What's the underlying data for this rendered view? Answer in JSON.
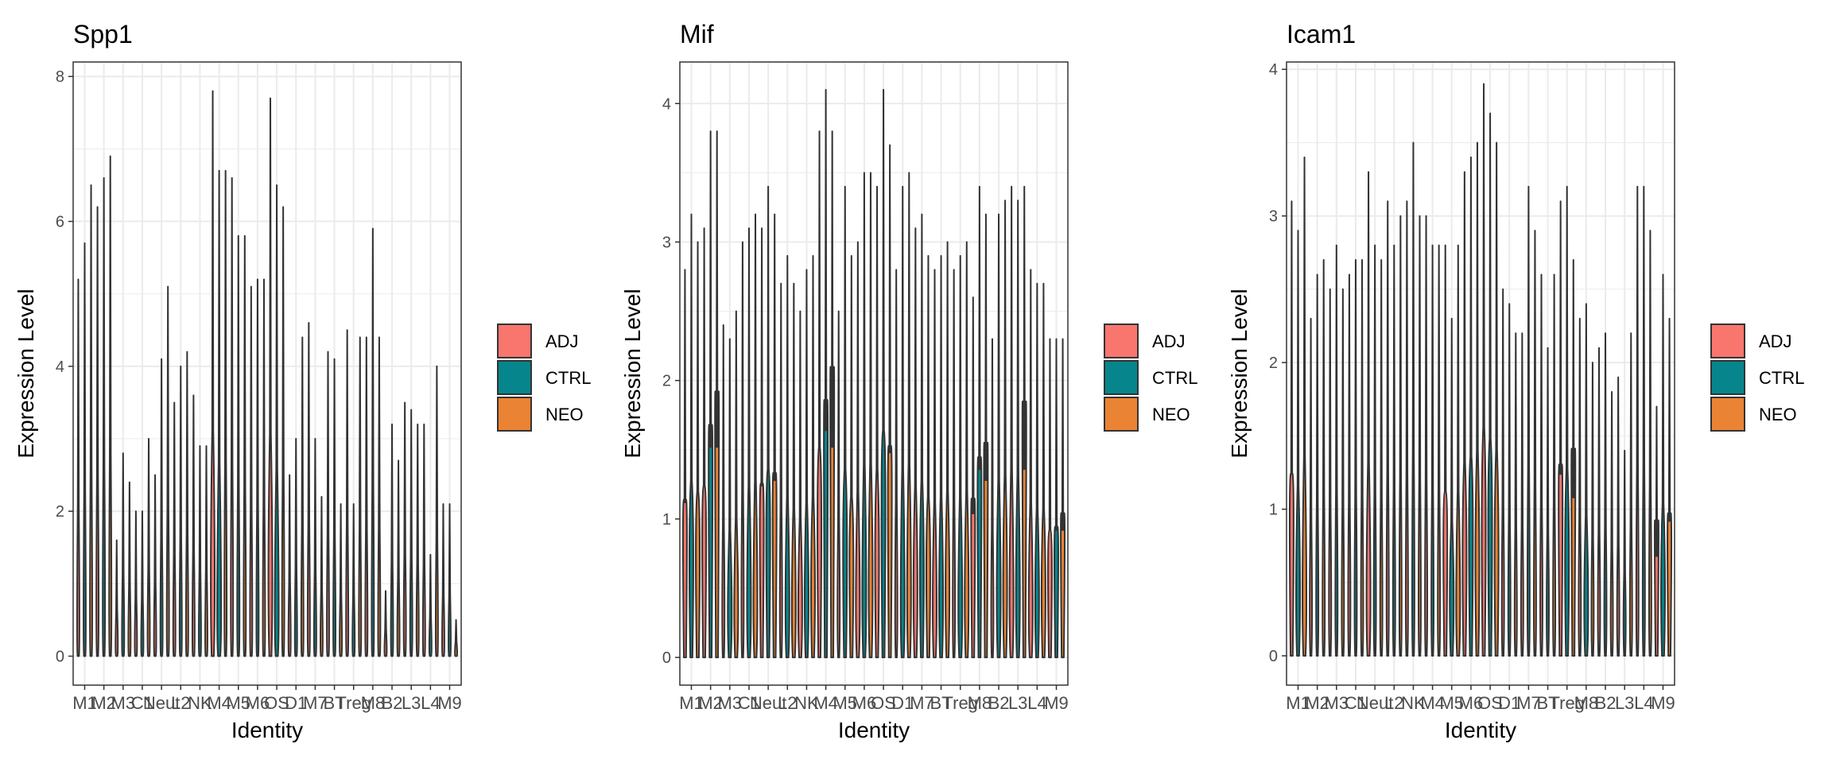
{
  "chart_data": [
    {
      "type": "violin",
      "title": "Spp1",
      "xlabel": "Identity",
      "ylabel": "Expression Level",
      "ylim": [
        -0.4,
        8.2
      ],
      "yticks": [
        0,
        2,
        4,
        6,
        8
      ],
      "xticks": [
        "M1",
        "M2",
        "M3",
        "C1",
        "Neut",
        "L2",
        "NK",
        "M4",
        "M5",
        "M6",
        "OS",
        "D1",
        "M7",
        "BT",
        "Treg",
        "M8",
        "B2",
        "L3",
        "L4",
        "M9"
      ],
      "series": [
        {
          "name": "ADJ",
          "max": [
            5.2,
            6.2,
            1.6,
            2.0,
            2.5,
            3.5,
            3.6,
            7.8,
            6.6,
            5.1,
            7.7,
            2.5,
            4.6,
            4.2,
            4.5,
            4.4,
            0.9,
            3.5,
            3.2,
            2.1
          ],
          "peak": [
            0,
            0.25,
            0,
            0,
            0,
            0,
            0,
            0.85,
            0.25,
            0,
            0.95,
            0,
            0,
            0,
            0,
            0,
            0,
            0.15,
            0,
            0
          ]
        },
        {
          "name": "CTRL",
          "max": [
            5.7,
            6.6,
            2.8,
            2.0,
            4.1,
            4.0,
            2.9,
            6.7,
            5.8,
            5.2,
            6.5,
            3.0,
            3.0,
            4.1,
            2.1,
            5.9,
            3.2,
            3.4,
            1.4,
            2.1
          ],
          "peak": [
            0,
            0.15,
            0,
            0,
            0,
            0,
            0,
            0.3,
            0.12,
            0,
            0.3,
            0,
            0,
            0,
            0,
            0,
            0,
            0.15,
            0,
            0
          ]
        },
        {
          "name": "NEO",
          "max": [
            6.5,
            6.9,
            2.4,
            3.0,
            5.1,
            4.2,
            2.9,
            6.7,
            5.8,
            5.2,
            6.2,
            4.4,
            2.2,
            2.1,
            4.4,
            4.4,
            2.7,
            3.2,
            4.0,
            0.5
          ],
          "peak": [
            0,
            0.1,
            0,
            0,
            0,
            0,
            0,
            0.2,
            0.08,
            0,
            0.2,
            0,
            0,
            0,
            0,
            0,
            0,
            0.1,
            0,
            0
          ]
        }
      ],
      "legend": {
        "position": "right"
      }
    },
    {
      "type": "violin",
      "title": "Mif",
      "xlabel": "Identity",
      "ylabel": "Expression Level",
      "ylim": [
        -0.2,
        4.3
      ],
      "yticks": [
        0,
        1,
        2,
        3,
        4
      ],
      "xticks": [
        "M1",
        "M2",
        "M3",
        "C1",
        "Neut",
        "L2",
        "NK",
        "M4",
        "M5",
        "M6",
        "OS",
        "D1",
        "M7",
        "BT",
        "Treg",
        "M8",
        "B2",
        "L3",
        "L4",
        "M9"
      ],
      "series": [
        {
          "name": "ADJ",
          "max": [
            2.8,
            3.1,
            2.4,
            3.0,
            3.1,
            2.7,
            2.5,
            3.8,
            2.5,
            3.0,
            3.4,
            2.8,
            3.1,
            2.8,
            2.8,
            2.6,
            2.3,
            3.4,
            2.8,
            2.3
          ],
          "peak": [
            1.3,
            1.2,
            0.2,
            0.2,
            1.4,
            0.2,
            0.3,
            1.3,
            0.2,
            0.3,
            0.9,
            0.2,
            0.5,
            0.3,
            0.2,
            1.5,
            0.2,
            0.3,
            0.3,
            0.9
          ]
        },
        {
          "name": "CTRL",
          "max": [
            3.2,
            3.8,
            2.3,
            3.1,
            3.4,
            2.9,
            2.8,
            4.1,
            3.4,
            3.5,
            4.1,
            3.4,
            3.2,
            2.9,
            2.9,
            3.4,
            3.2,
            3.3,
            2.7,
            2.3
          ],
          "peak": [
            0.9,
            2.2,
            0.3,
            0.3,
            1.2,
            0.3,
            0.4,
            2.5,
            1.0,
            0.4,
            1.5,
            0.3,
            0.7,
            0.4,
            0.3,
            1.8,
            0.4,
            0.4,
            0.4,
            1.1
          ]
        },
        {
          "name": "NEO",
          "max": [
            3.0,
            3.8,
            2.5,
            3.2,
            3.2,
            2.7,
            2.9,
            3.8,
            2.9,
            3.5,
            3.7,
            3.5,
            2.9,
            3.0,
            3.0,
            3.2,
            3.3,
            3.4,
            2.7,
            2.3
          ],
          "peak": [
            1.0,
            2.8,
            0.3,
            0.3,
            1.6,
            0.3,
            0.5,
            3.2,
            0.9,
            0.5,
            1.8,
            0.4,
            0.8,
            0.5,
            0.4,
            2.2,
            0.5,
            2.8,
            0.5,
            1.4
          ]
        }
      ],
      "legend": {
        "position": "right"
      }
    },
    {
      "type": "violin",
      "title": "Icam1",
      "xlabel": "Identity",
      "ylabel": "Expression Level",
      "ylim": [
        -0.2,
        4.05
      ],
      "yticks": [
        0,
        1,
        2,
        3,
        4
      ],
      "xticks": [
        "M1",
        "M2",
        "M3",
        "C1",
        "Neut",
        "L2",
        "NK",
        "M4",
        "M5",
        "M6",
        "OS",
        "D1",
        "M7",
        "BT",
        "Treg",
        "M8",
        "B2",
        "L3",
        "L4",
        "M9"
      ],
      "series": [
        {
          "name": "ADJ",
          "max": [
            3.1,
            2.3,
            2.5,
            2.6,
            3.3,
            3.1,
            3.1,
            3.0,
            2.8,
            3.3,
            3.9,
            2.5,
            2.2,
            2.6,
            3.1,
            2.3,
            2.1,
            1.9,
            3.2,
            1.7
          ],
          "peak": [
            1.3,
            0.2,
            0.2,
            0.2,
            0.3,
            0.2,
            0.2,
            0.2,
            1.1,
            0.8,
            1.1,
            0.2,
            0.2,
            0.2,
            1.6,
            0.2,
            0.2,
            0.2,
            0.2,
            1.4
          ]
        },
        {
          "name": "CTRL",
          "max": [
            2.9,
            2.6,
            2.8,
            2.7,
            2.8,
            2.8,
            3.5,
            2.8,
            2.3,
            3.4,
            3.7,
            2.4,
            3.2,
            2.1,
            3.2,
            2.4,
            2.2,
            1.4,
            3.2,
            2.6
          ],
          "peak": [
            0.4,
            0.2,
            0.2,
            0.2,
            0.2,
            0.2,
            0.2,
            0.2,
            0.4,
            1.1,
            1.2,
            0.2,
            0.2,
            0.2,
            0.8,
            0.3,
            0.2,
            0.2,
            0.2,
            0.5
          ]
        },
        {
          "name": "NEO",
          "max": [
            3.4,
            2.7,
            2.5,
            2.7,
            2.7,
            3.0,
            3.0,
            2.8,
            2.8,
            3.5,
            3.5,
            2.2,
            2.9,
            2.6,
            2.7,
            2.0,
            1.8,
            2.2,
            2.9,
            2.3
          ],
          "peak": [
            0.3,
            0.15,
            0.15,
            0.15,
            0.15,
            0.15,
            0.15,
            0.15,
            0.3,
            0.7,
            0.8,
            0.15,
            0.15,
            0.15,
            2.1,
            0.2,
            0.15,
            0.15,
            0.15,
            1.2
          ]
        }
      ],
      "legend": {
        "position": "right"
      }
    }
  ],
  "colors": {
    "ADJ": "#F8766D",
    "CTRL": "#06868C",
    "NEO": "#EA8333",
    "panel_border": "#333333",
    "grid": "#EBEBEB",
    "outline": "#333333"
  }
}
